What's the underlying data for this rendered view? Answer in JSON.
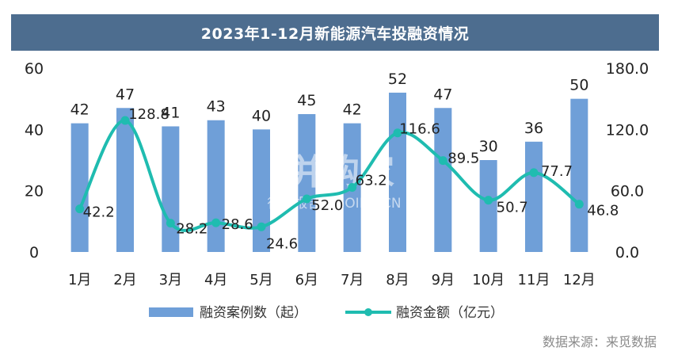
{
  "title": "2023年1-12月新能源汽车投融资情况",
  "source": "数据来源：来觅数据",
  "watermark": {
    "brand": "并购家",
    "sub": "行业报告 BGOIPO.CN"
  },
  "colors": {
    "bar": "#6f9fd8",
    "line": "#1fbcb0",
    "title_bg": "#4d6d8f"
  },
  "chart_data": {
    "type": "bar+line",
    "categories": [
      "1月",
      "2月",
      "3月",
      "4月",
      "5月",
      "6月",
      "7月",
      "8月",
      "9月",
      "10月",
      "11月",
      "12月"
    ],
    "series": [
      {
        "name": "融资案例数（起）",
        "type": "bar",
        "axis": "left",
        "values": [
          42,
          47,
          41,
          43,
          40,
          45,
          42,
          52,
          47,
          30,
          36,
          50
        ]
      },
      {
        "name": "融资金额（亿元）",
        "type": "line",
        "axis": "right",
        "smooth": true,
        "values": [
          42.2,
          128.8,
          28.2,
          28.6,
          24.6,
          52.0,
          63.2,
          116.6,
          89.5,
          50.7,
          77.7,
          46.8
        ]
      }
    ],
    "y_left": {
      "min": 0,
      "max": 60,
      "ticks": [
        "0",
        "20",
        "40",
        "60"
      ]
    },
    "y_right": {
      "min": 0,
      "max": 180,
      "ticks": [
        "0.0",
        "60.0",
        "120.0",
        "180.0"
      ]
    },
    "bar_labels": [
      "42",
      "47",
      "41",
      "43",
      "40",
      "45",
      "42",
      "52",
      "47",
      "30",
      "36",
      "50"
    ],
    "line_labels": [
      "42.2",
      "128.8",
      "28.2",
      "28.6",
      "24.6",
      "52.0",
      "63.2",
      "116.6",
      "89.5",
      "50.7",
      "77.7",
      "46.8"
    ],
    "legend_position": "bottom",
    "grid": false
  }
}
